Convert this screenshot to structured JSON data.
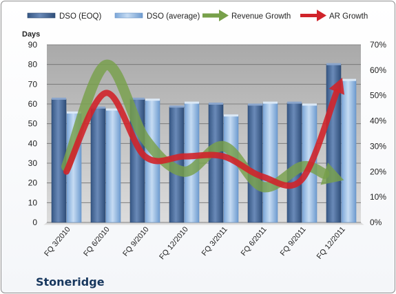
{
  "company": "Stoneridge",
  "chart_data": {
    "type": "bar",
    "categories": [
      "FQ 3/2010",
      "FQ 6/2010",
      "FQ 9/2010",
      "FQ 12/2010",
      "FQ 3/2011",
      "FQ 6/2011",
      "FQ 9/2011",
      "FQ 12/2011"
    ],
    "ylabel": "Days",
    "ylim": [
      0,
      90
    ],
    "yticks": [
      "0",
      "10",
      "20",
      "30",
      "40",
      "50",
      "60",
      "70",
      "80",
      "90"
    ],
    "y2lim": [
      0,
      0.7
    ],
    "y2ticks": [
      "0%",
      "10%",
      "20%",
      "30%",
      "40%",
      "50%",
      "60%",
      "70%"
    ],
    "legend_position": "top",
    "grid": true,
    "series": [
      {
        "name": "DSO (EOQ)",
        "kind": "bar",
        "axis": "left",
        "color": "#4f6d9a",
        "values": [
          62.5,
          58,
          62.5,
          58.5,
          60,
          59.5,
          60.5,
          80
        ]
      },
      {
        "name": "DSO (average)",
        "kind": "bar",
        "axis": "left",
        "color": "#8db4e2",
        "values": [
          55.5,
          57,
          62,
          60.5,
          54,
          60.5,
          59.5,
          72
        ]
      },
      {
        "name": "Revenue Growth",
        "kind": "line-arrow",
        "axis": "right",
        "color": "#77a04a",
        "values": [
          0.22,
          0.62,
          0.33,
          0.2,
          0.3,
          0.14,
          0.22,
          0.17
        ]
      },
      {
        "name": "AR Growth",
        "kind": "line-arrow",
        "axis": "right",
        "color": "#d0232a",
        "values": [
          0.2,
          0.51,
          0.26,
          0.26,
          0.26,
          0.18,
          0.17,
          0.56
        ]
      }
    ]
  }
}
